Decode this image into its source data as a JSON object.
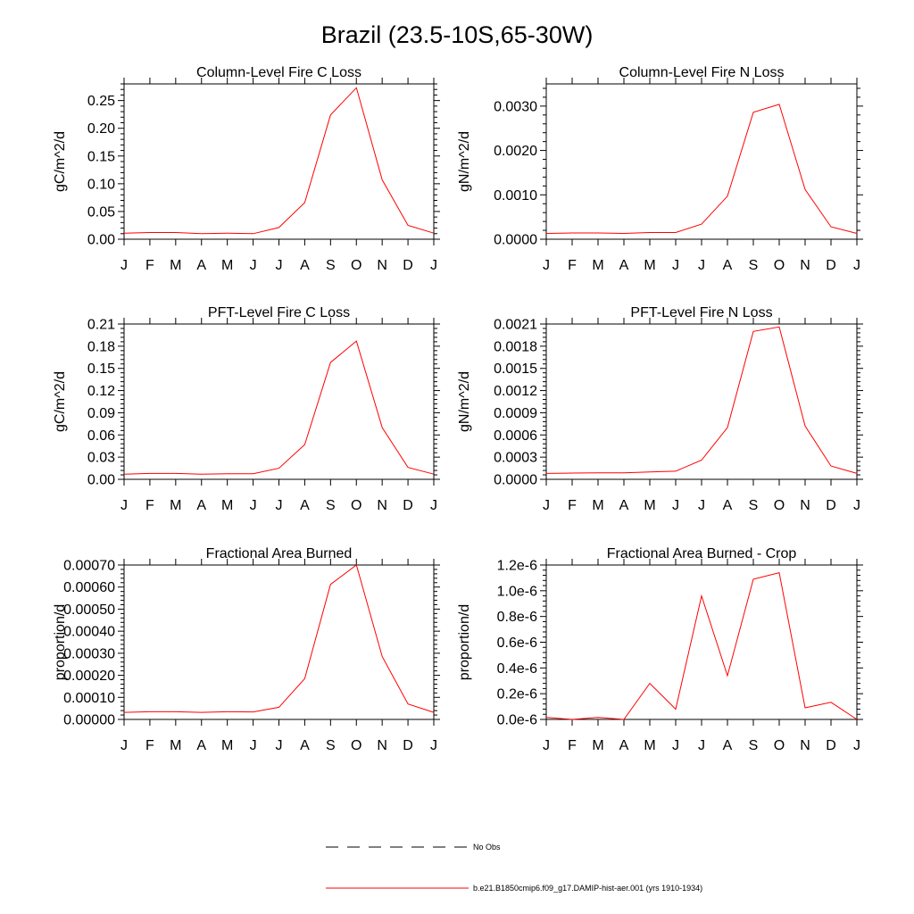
{
  "title": "Brazil (23.5-10S,65-30W)",
  "colors": {
    "model_line": "#ff0000",
    "obs_line": "#000000",
    "axis": "#000000"
  },
  "legend": [
    {
      "label": "No Obs",
      "style": "dashed",
      "color": "#000000"
    },
    {
      "label": "b.e21.B1850cmip6.f09_g17.DAMIP-hist-aer.001 (yrs 1910-1934)",
      "style": "solid",
      "color": "#ff0000"
    }
  ],
  "chart_data": [
    {
      "type": "line",
      "title": "Column-Level Fire C Loss",
      "ylabel": "gC/m^2/d",
      "categories": [
        "J",
        "F",
        "M",
        "A",
        "M",
        "J",
        "J",
        "A",
        "S",
        "O",
        "N",
        "D",
        "J"
      ],
      "ylim": [
        0,
        0.28
      ],
      "yticks": [
        0.0,
        0.05,
        0.1,
        0.15,
        0.2,
        0.25
      ],
      "ytick_labels": [
        "0.00",
        "0.05",
        "0.10",
        "0.15",
        "0.20",
        "0.25"
      ],
      "series": [
        {
          "values": [
            0.011,
            0.012,
            0.012,
            0.01,
            0.011,
            0.01,
            0.021,
            0.066,
            0.224,
            0.273,
            0.107,
            0.025,
            0.011
          ]
        }
      ]
    },
    {
      "type": "line",
      "title": "Column-Level Fire N Loss",
      "ylabel": "gN/m^2/d",
      "categories": [
        "J",
        "F",
        "M",
        "A",
        "M",
        "J",
        "J",
        "A",
        "S",
        "O",
        "N",
        "D",
        "J"
      ],
      "ylim": [
        0,
        0.0035
      ],
      "yticks": [
        0.0,
        0.001,
        0.002,
        0.003
      ],
      "ytick_labels": [
        "0.0000",
        "0.0010",
        "0.0020",
        "0.0030"
      ],
      "series": [
        {
          "values": [
            0.00013,
            0.00014,
            0.00014,
            0.00013,
            0.00015,
            0.00015,
            0.00034,
            0.00097,
            0.00286,
            0.00304,
            0.00112,
            0.00028,
            0.00013
          ]
        }
      ]
    },
    {
      "type": "line",
      "title": "PFT-Level Fire C Loss",
      "ylabel": "gC/m^2/d",
      "categories": [
        "J",
        "F",
        "M",
        "A",
        "M",
        "J",
        "J",
        "A",
        "S",
        "O",
        "N",
        "D",
        "J"
      ],
      "ylim": [
        0,
        0.21
      ],
      "yticks": [
        0.0,
        0.03,
        0.06,
        0.09,
        0.12,
        0.15,
        0.18,
        0.21
      ],
      "ytick_labels": [
        "0.00",
        "0.03",
        "0.06",
        "0.09",
        "0.12",
        "0.15",
        "0.18",
        "0.21"
      ],
      "series": [
        {
          "values": [
            0.007,
            0.008,
            0.008,
            0.007,
            0.0075,
            0.0075,
            0.015,
            0.047,
            0.158,
            0.187,
            0.07,
            0.016,
            0.007
          ]
        }
      ]
    },
    {
      "type": "line",
      "title": "PFT-Level Fire N Loss",
      "ylabel": "gN/m^2/d",
      "categories": [
        "J",
        "F",
        "M",
        "A",
        "M",
        "J",
        "J",
        "A",
        "S",
        "O",
        "N",
        "D",
        "J"
      ],
      "ylim": [
        0,
        0.0021
      ],
      "yticks": [
        0.0,
        0.0003,
        0.0006,
        0.0009,
        0.0012,
        0.0015,
        0.0018,
        0.0021
      ],
      "ytick_labels": [
        "0.0000",
        "0.0003",
        "0.0006",
        "0.0009",
        "0.0012",
        "0.0015",
        "0.0018",
        "0.0021"
      ],
      "series": [
        {
          "values": [
            8e-05,
            8.5e-05,
            8.8e-05,
            8.7e-05,
            0.0001,
            0.00011,
            0.00026,
            0.0007,
            0.002,
            0.00206,
            0.00072,
            0.00018,
            8e-05
          ]
        }
      ]
    },
    {
      "type": "line",
      "title": "Fractional Area Burned",
      "ylabel": "proportion/d",
      "categories": [
        "J",
        "F",
        "M",
        "A",
        "M",
        "J",
        "J",
        "A",
        "S",
        "O",
        "N",
        "D",
        "J"
      ],
      "ylim": [
        0,
        0.0007
      ],
      "yticks": [
        0.0,
        0.0001,
        0.0002,
        0.0003,
        0.0004,
        0.0005,
        0.0006,
        0.0007
      ],
      "ytick_labels": [
        "0.00000",
        "0.00010",
        "0.00020",
        "0.00030",
        "0.00040",
        "0.00050",
        "0.00060",
        "0.00070"
      ],
      "series": [
        {
          "values": [
            3.2e-05,
            3.5e-05,
            3.5e-05,
            3.2e-05,
            3.5e-05,
            3.4e-05,
            5.5e-05,
            0.000185,
            0.000612,
            0.0007,
            0.000285,
            7e-05,
            3.2e-05
          ]
        }
      ]
    },
    {
      "type": "line",
      "title": "Fractional Area Burned - Crop",
      "ylabel": "proportion/d",
      "categories": [
        "J",
        "F",
        "M",
        "A",
        "M",
        "J",
        "J",
        "A",
        "S",
        "O",
        "N",
        "D",
        "J"
      ],
      "ylim": [
        0,
        1.2e-06
      ],
      "yticks": [
        0.0,
        2e-07,
        4e-07,
        6e-07,
        8e-07,
        1e-06,
        1.2e-06
      ],
      "ytick_labels": [
        "0.0e-6",
        "0.2e-6",
        "0.4e-6",
        "0.6e-6",
        "0.8e-6",
        "1.0e-6",
        "1.2e-6"
      ],
      "series": [
        {
          "values": [
            1.5e-08,
            0.0,
            1.6e-08,
            0.0,
            2.8e-07,
            8e-08,
            9.6e-07,
            3.4e-07,
            1.09e-06,
            1.14e-06,
            9e-08,
            1.33e-07,
            0.0
          ]
        }
      ]
    }
  ]
}
